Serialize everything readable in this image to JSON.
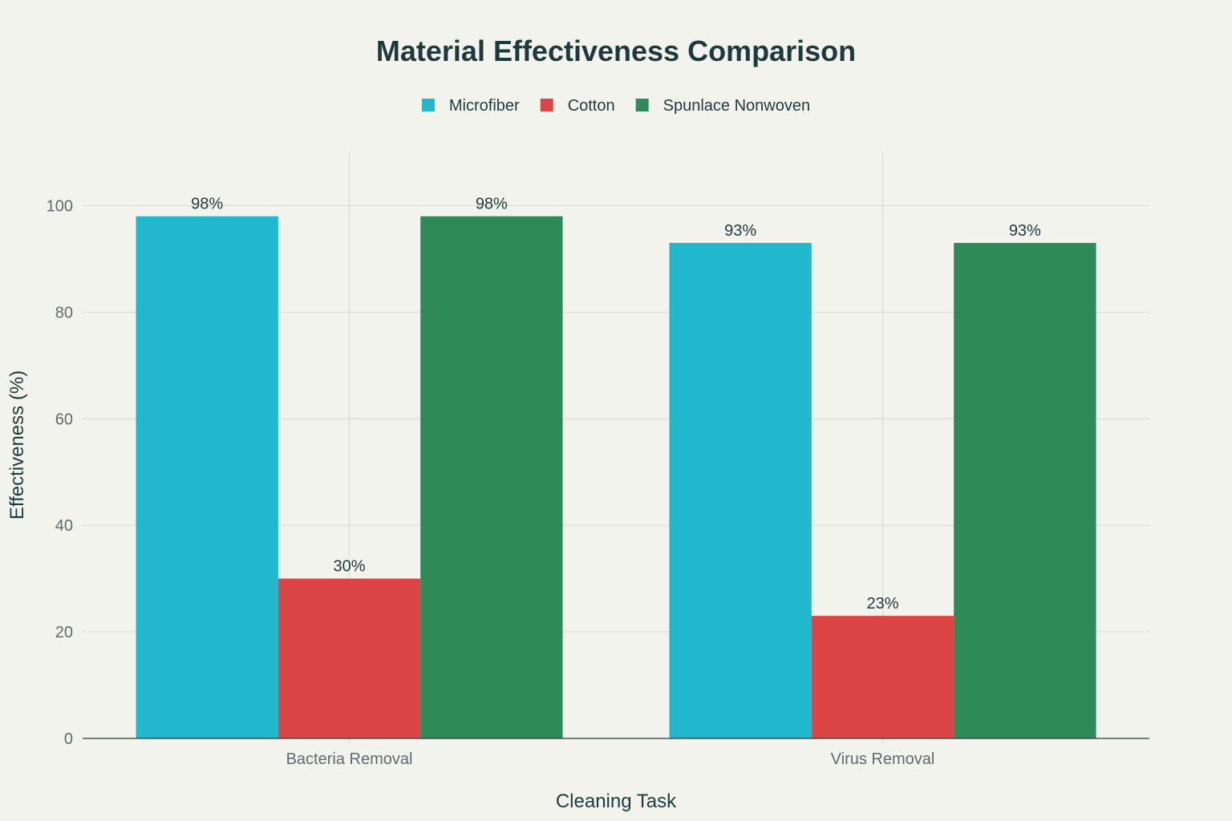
{
  "chart_data": {
    "type": "bar",
    "title": "Material Effectiveness Comparison",
    "xlabel": "Cleaning Task",
    "ylabel": "Effectiveness (%)",
    "categories": [
      "Bacteria Removal",
      "Virus Removal"
    ],
    "series": [
      {
        "name": "Microfiber",
        "values": [
          98,
          93
        ],
        "labels": [
          "98%",
          "93%"
        ],
        "color": "#21b8cd"
      },
      {
        "name": "Cotton",
        "values": [
          30,
          23
        ],
        "labels": [
          "30%",
          "23%"
        ],
        "color": "#db4545"
      },
      {
        "name": "Spunlace Nonwoven",
        "values": [
          98,
          93
        ],
        "labels": [
          "98%",
          "93%"
        ],
        "color": "#2e8b57"
      }
    ],
    "ylim": [
      0,
      110
    ],
    "yticks": [
      0,
      20,
      40,
      60,
      80,
      100
    ],
    "grid": true,
    "legend_position": "top-center"
  }
}
